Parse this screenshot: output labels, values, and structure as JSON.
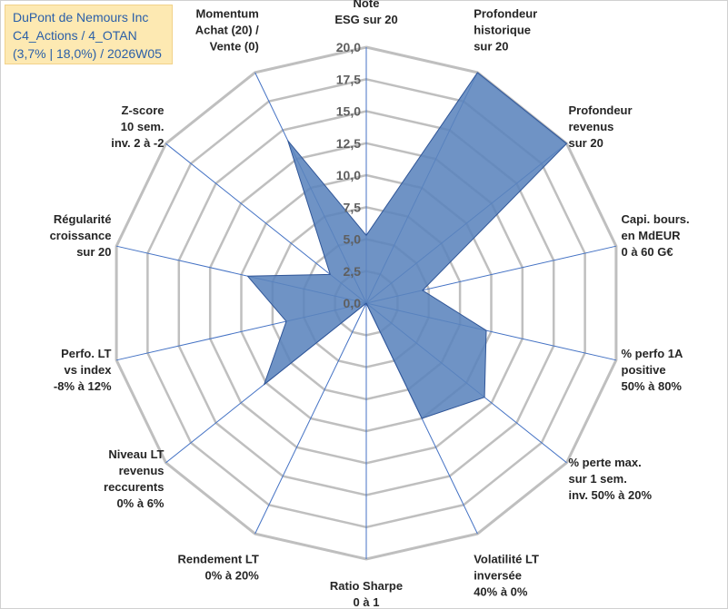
{
  "header": {
    "lines": [
      "DuPont de Nemours Inc",
      "C4_Actions / 4_OTAN",
      "(3,7% | 18,0%) / 2026W05"
    ]
  },
  "colors": {
    "grid": "#bfbfbf",
    "spoke": "#4472c4",
    "fill": "#5b84bd",
    "stroke": "#2f5597",
    "title_bg": "#fde9b2",
    "title_text": "#2b5fa8"
  },
  "chart_data": {
    "type": "radar",
    "title": "DuPont de Nemours Inc",
    "rmin": 0,
    "rmax": 20,
    "ticks": [
      "0,0",
      "2,5",
      "5,0",
      "7,5",
      "10,0",
      "12,5",
      "15,0",
      "17,5",
      "20,0"
    ],
    "tick_values": [
      0,
      2.5,
      5,
      7.5,
      10,
      12.5,
      15,
      17.5,
      20
    ],
    "axes": [
      {
        "lines": [
          "Note",
          "ESG sur 20"
        ],
        "value": 5.3
      },
      {
        "lines": [
          "Profondeur",
          "historique",
          "sur 20"
        ],
        "value": 20
      },
      {
        "lines": [
          "Profondeur",
          "revenus",
          "sur 20"
        ],
        "value": 20
      },
      {
        "lines": [
          "Capi. bours.",
          "en MdEUR",
          "0 à 60 G€"
        ],
        "value": 4.5
      },
      {
        "lines": [
          "% perfo 1A",
          "positive",
          "50% à 80%"
        ],
        "value": 9.6
      },
      {
        "lines": [
          "% perte max.",
          "sur 1 sem.",
          "inv. 50% à 20%"
        ],
        "value": 11.8
      },
      {
        "lines": [
          "Volatilité LT",
          "inversée",
          "40% à 0%"
        ],
        "value": 10.0
      },
      {
        "lines": [
          "Ratio Sharpe",
          "0 à 1"
        ],
        "value": 0.0
      },
      {
        "lines": [
          "Rendement LT",
          "0% à 20%"
        ],
        "value": 0.0
      },
      {
        "lines": [
          "Niveau LT",
          "revenus",
          "reccurents",
          "0% à 6%"
        ],
        "value": 10.2
      },
      {
        "lines": [
          "Perfo. LT",
          "vs index",
          "-8% à 12%"
        ],
        "value": 6.4
      },
      {
        "lines": [
          "Régularité",
          "croissance",
          "sur 20"
        ],
        "value": 9.5
      },
      {
        "lines": [
          "Z-score",
          "10 sem.",
          "inv. 2 à -2"
        ],
        "value": 3.6
      },
      {
        "lines": [
          "Momentum",
          "Achat (20) /",
          "Vente (0)"
        ],
        "value": 14.1
      }
    ]
  }
}
